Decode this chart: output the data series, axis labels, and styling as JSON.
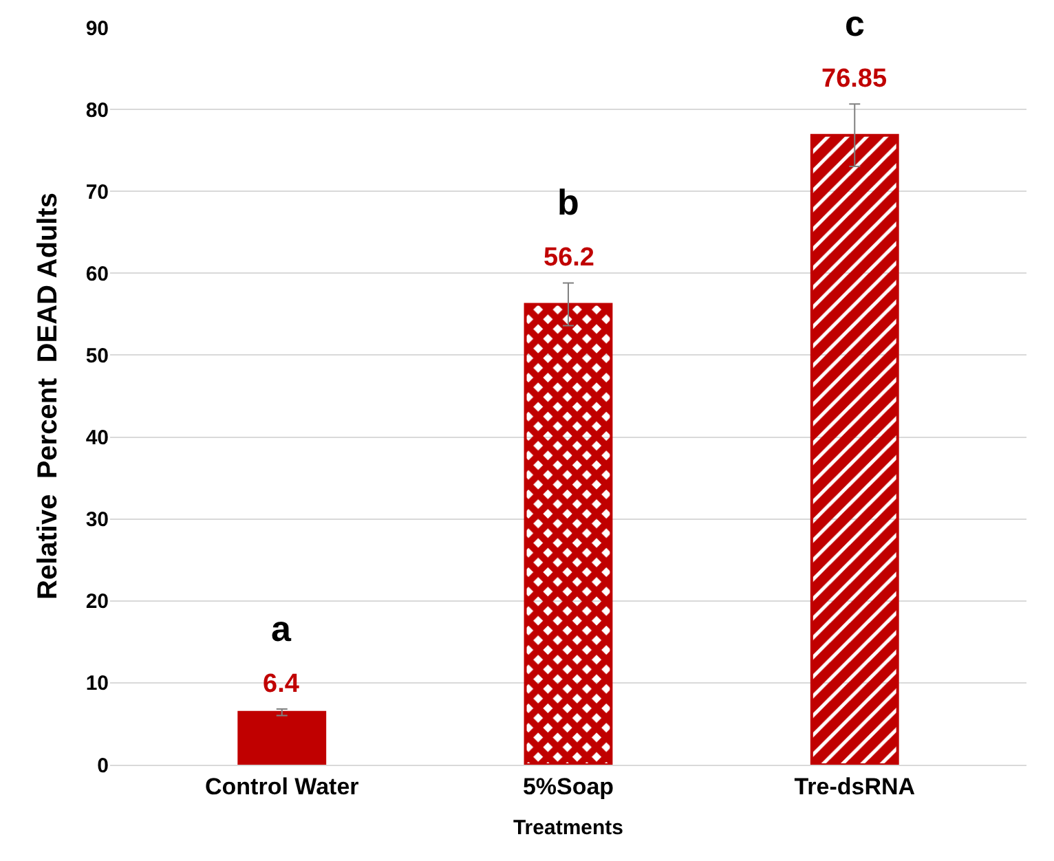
{
  "chart_data": {
    "type": "bar",
    "xlabel": "Treatments",
    "ylabel": "Relative  Percent  DEAD Adults",
    "categories": [
      "Control Water",
      "5%Soap",
      "Tre-dsRNA"
    ],
    "values": [
      6.4,
      56.2,
      76.85
    ],
    "errors": [
      0.4,
      2.6,
      3.8
    ],
    "colors": [
      "#c00000",
      "#c00000",
      "#c00000"
    ],
    "data_labels": true,
    "ylim": [
      0,
      90
    ],
    "yticks": [
      0,
      10,
      20,
      30,
      40,
      50,
      60,
      70,
      80,
      90
    ],
    "grid": "y",
    "legend": false,
    "annotations": [
      "a",
      "b",
      "c"
    ]
  }
}
